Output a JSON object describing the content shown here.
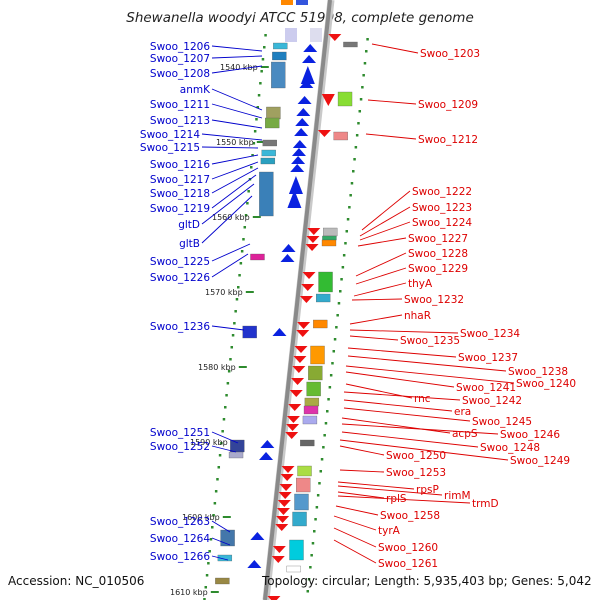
{
  "title": "Shewanella woodyi ATCC 51908, complete genome",
  "footer": {
    "accession": "Accession: NC_010506",
    "details": "Topology: circular; Length: 5,935,403 bp; Genes: 5,042"
  },
  "colors": {
    "left_label": "#0000cc",
    "right_label": "#dd0000",
    "backbone": "#8a8a8a",
    "tick": "#2e8b2e"
  },
  "kbp_markers": [
    "1540 kbp",
    "1550 kbp",
    "1560 kbp",
    "1570 kbp",
    "1580 kbp",
    "1590 kbp",
    "1600 kbp",
    "1610 kbp"
  ],
  "left_labels": [
    "Swoo_1206",
    "Swoo_1207",
    "Swoo_1208",
    "anmK",
    "Swoo_1211",
    "Swoo_1213",
    "Swoo_1214",
    "Swoo_1215",
    "Swoo_1216",
    "Swoo_1217",
    "Swoo_1218",
    "Swoo_1219",
    "gltD",
    "gltB",
    "Swoo_1225",
    "Swoo_1226",
    "Swoo_1236",
    "Swoo_1251",
    "Swoo_1252",
    "Swoo_1263",
    "Swoo_1264",
    "Swoo_1266"
  ],
  "right_labels": [
    "Swoo_1203",
    "Swoo_1209",
    "Swoo_1212",
    "Swoo_1222",
    "Swoo_1223",
    "Swoo_1224",
    "Swoo_1227",
    "Swoo_1228",
    "Swoo_1229",
    "thyA",
    "Swoo_1232",
    "nhaR",
    "Swoo_1234",
    "Swoo_1235",
    "Swoo_1237",
    "Swoo_1238",
    "Swoo_1240",
    "Swoo_1241",
    "rnc",
    "Swoo_1242",
    "era",
    "Swoo_1245",
    "acpS",
    "Swoo_1246",
    "Swoo_1248",
    "Swoo_1249",
    "Swoo_1250",
    "Swoo_1253",
    "rpsP",
    "rimM",
    "rplS",
    "trmD",
    "Swoo_1258",
    "tyrA",
    "Swoo_1260",
    "Swoo_1261"
  ]
}
